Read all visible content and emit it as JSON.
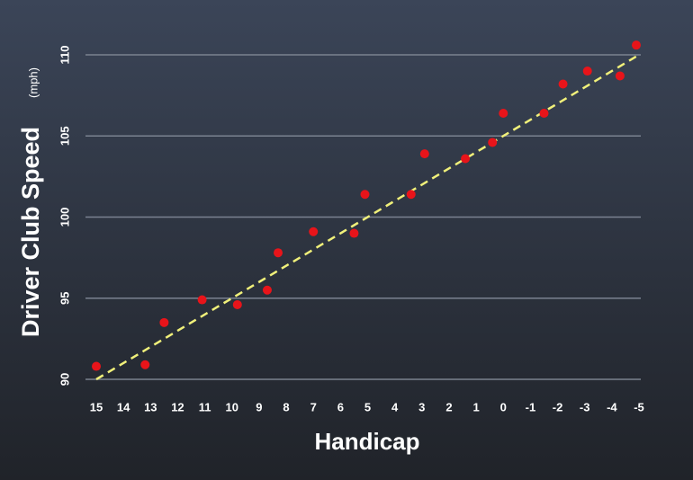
{
  "chart_data": {
    "type": "scatter",
    "x_label": "Handicap",
    "y_label": "Driver Club Speed",
    "y_unit": "(mph)",
    "x": [
      15,
      13.2,
      12.5,
      11.1,
      9.8,
      8.7,
      8.3,
      7.0,
      5.5,
      5.1,
      3.4,
      2.9,
      1.4,
      0.4,
      0.0,
      -1.5,
      -2.2,
      -3.1,
      -4.3,
      -4.9
    ],
    "values": [
      90.8,
      90.9,
      93.5,
      94.9,
      94.6,
      95.5,
      97.8,
      99.1,
      99.0,
      101.4,
      101.4,
      103.9,
      103.6,
      104.6,
      106.4,
      106.4,
      108.2,
      109.0,
      108.7,
      110.6
    ],
    "color": "#e8141a",
    "trend_line": {
      "x": [
        15,
        -5
      ],
      "values": [
        90,
        110
      ],
      "color": "#f0f07a"
    },
    "xlim": [
      15,
      -5
    ],
    "xticks": [
      15,
      14,
      13,
      12,
      11,
      10,
      9,
      8,
      7,
      6,
      5,
      4,
      3,
      2,
      1,
      0,
      -1,
      -2,
      -3,
      -4,
      -5
    ],
    "ylim": [
      90,
      110
    ],
    "yticks": [
      90,
      95,
      100,
      105,
      110
    ],
    "grid": true
  }
}
